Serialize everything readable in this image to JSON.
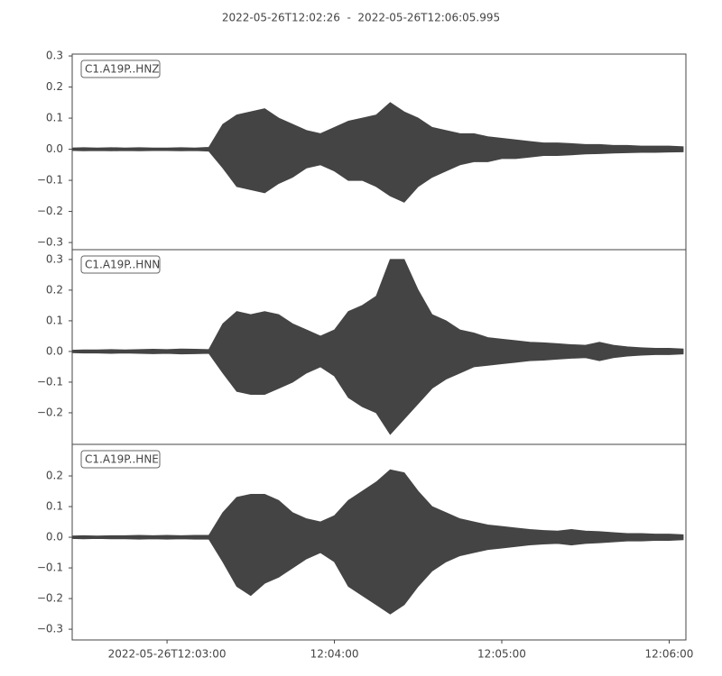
{
  "title": "2022-05-26T12:02:26  -  2022-05-26T12:06:05.995",
  "chart_data": [
    {
      "type": "area",
      "label": "C1.A19P..HNZ",
      "color": "#444444",
      "x": [
        "12:02:26",
        "12:02:30",
        "12:02:35",
        "12:02:40",
        "12:02:45",
        "12:02:50",
        "12:02:55",
        "12:03:00",
        "12:03:05",
        "12:03:10",
        "12:03:15",
        "12:03:20",
        "12:03:25",
        "12:03:30",
        "12:03:35",
        "12:03:40",
        "12:03:45",
        "12:03:50",
        "12:03:55",
        "12:04:00",
        "12:04:05",
        "12:04:10",
        "12:04:15",
        "12:04:20",
        "12:04:25",
        "12:04:30",
        "12:04:35",
        "12:04:40",
        "12:04:45",
        "12:04:50",
        "12:04:55",
        "12:05:00",
        "12:05:05",
        "12:05:10",
        "12:05:15",
        "12:05:20",
        "12:05:25",
        "12:05:30",
        "12:05:35",
        "12:05:40",
        "12:05:45",
        "12:05:50",
        "12:05:55",
        "12:06:00",
        "12:06:05"
      ],
      "high": [
        0.004,
        0.005,
        0.004,
        0.005,
        0.004,
        0.005,
        0.004,
        0.004,
        0.005,
        0.004,
        0.006,
        0.08,
        0.11,
        0.12,
        0.13,
        0.1,
        0.08,
        0.06,
        0.05,
        0.07,
        0.09,
        0.1,
        0.11,
        0.15,
        0.12,
        0.1,
        0.07,
        0.06,
        0.05,
        0.05,
        0.04,
        0.035,
        0.03,
        0.025,
        0.02,
        0.02,
        0.018,
        0.015,
        0.015,
        0.012,
        0.012,
        0.01,
        0.01,
        0.01,
        0.008
      ],
      "low": [
        -0.004,
        -0.005,
        -0.004,
        -0.005,
        -0.004,
        -0.005,
        -0.004,
        -0.004,
        -0.005,
        -0.004,
        -0.006,
        -0.06,
        -0.12,
        -0.13,
        -0.14,
        -0.11,
        -0.09,
        -0.06,
        -0.05,
        -0.07,
        -0.1,
        -0.1,
        -0.12,
        -0.15,
        -0.17,
        -0.12,
        -0.09,
        -0.07,
        -0.05,
        -0.04,
        -0.04,
        -0.03,
        -0.03,
        -0.025,
        -0.02,
        -0.02,
        -0.018,
        -0.015,
        -0.014,
        -0.012,
        -0.011,
        -0.01,
        -0.01,
        -0.009,
        -0.008
      ],
      "xlim": [
        "12:02:26",
        "12:06:05.995"
      ],
      "ylim": [
        -0.323,
        0.306
      ],
      "yticks": [
        {
          "value": -0.3,
          "label": "−0.3"
        },
        {
          "value": -0.2,
          "label": "−0.2"
        },
        {
          "value": -0.1,
          "label": "−0.1"
        },
        {
          "value": 0,
          "label": "0.0"
        },
        0.1,
        0.2,
        0.3
      ]
    },
    {
      "type": "area",
      "label": "C1.A19P..HNN",
      "color": "#444444",
      "x": [
        "12:02:26",
        "12:02:30",
        "12:02:35",
        "12:02:40",
        "12:02:45",
        "12:02:50",
        "12:02:55",
        "12:03:00",
        "12:03:05",
        "12:03:10",
        "12:03:15",
        "12:03:20",
        "12:03:25",
        "12:03:30",
        "12:03:35",
        "12:03:40",
        "12:03:45",
        "12:03:50",
        "12:03:55",
        "12:04:00",
        "12:04:05",
        "12:04:10",
        "12:04:15",
        "12:04:20",
        "12:04:25",
        "12:04:30",
        "12:04:35",
        "12:04:40",
        "12:04:45",
        "12:04:50",
        "12:04:55",
        "12:05:00",
        "12:05:05",
        "12:05:10",
        "12:05:15",
        "12:05:20",
        "12:05:25",
        "12:05:30",
        "12:05:35",
        "12:05:40",
        "12:05:45",
        "12:05:50",
        "12:05:55",
        "12:06:00",
        "12:06:05"
      ],
      "high": [
        0.004,
        0.005,
        0.005,
        0.006,
        0.005,
        0.006,
        0.007,
        0.006,
        0.008,
        0.007,
        0.006,
        0.09,
        0.13,
        0.12,
        0.13,
        0.12,
        0.09,
        0.07,
        0.05,
        0.07,
        0.13,
        0.15,
        0.18,
        0.3,
        0.3,
        0.2,
        0.12,
        0.1,
        0.07,
        0.06,
        0.045,
        0.04,
        0.035,
        0.03,
        0.028,
        0.025,
        0.022,
        0.02,
        0.03,
        0.02,
        0.015,
        0.012,
        0.01,
        0.01,
        0.008
      ],
      "low": [
        -0.004,
        -0.005,
        -0.005,
        -0.006,
        -0.005,
        -0.006,
        -0.007,
        -0.006,
        -0.008,
        -0.007,
        -0.006,
        -0.07,
        -0.13,
        -0.14,
        -0.14,
        -0.12,
        -0.1,
        -0.07,
        -0.05,
        -0.08,
        -0.15,
        -0.18,
        -0.2,
        -0.27,
        -0.22,
        -0.17,
        -0.12,
        -0.09,
        -0.07,
        -0.05,
        -0.045,
        -0.04,
        -0.035,
        -0.03,
        -0.028,
        -0.025,
        -0.022,
        -0.02,
        -0.03,
        -0.02,
        -0.015,
        -0.012,
        -0.01,
        -0.01,
        -0.008
      ],
      "xlim": [
        "12:02:26",
        "12:06:05.995"
      ],
      "ylim": [
        -0.303,
        0.332
      ],
      "yticks": [
        {
          "value": -0.2,
          "label": "−0.2"
        },
        {
          "value": -0.1,
          "label": "−0.1"
        },
        {
          "value": 0,
          "label": "0.0"
        },
        0.1,
        0.2,
        0.3
      ]
    },
    {
      "type": "area",
      "label": "C1.A19P..HNE",
      "color": "#444444",
      "x": [
        "12:02:26",
        "12:02:30",
        "12:02:35",
        "12:02:40",
        "12:02:45",
        "12:02:50",
        "12:02:55",
        "12:03:00",
        "12:03:05",
        "12:03:10",
        "12:03:15",
        "12:03:20",
        "12:03:25",
        "12:03:30",
        "12:03:35",
        "12:03:40",
        "12:03:45",
        "12:03:50",
        "12:03:55",
        "12:04:00",
        "12:04:05",
        "12:04:10",
        "12:04:15",
        "12:04:20",
        "12:04:25",
        "12:04:30",
        "12:04:35",
        "12:04:40",
        "12:04:45",
        "12:04:50",
        "12:04:55",
        "12:05:00",
        "12:05:05",
        "12:05:10",
        "12:05:15",
        "12:05:20",
        "12:05:25",
        "12:05:30",
        "12:05:35",
        "12:05:40",
        "12:05:45",
        "12:05:50",
        "12:05:55",
        "12:06:00",
        "12:06:05"
      ],
      "high": [
        0.004,
        0.005,
        0.004,
        0.005,
        0.005,
        0.006,
        0.005,
        0.006,
        0.005,
        0.006,
        0.006,
        0.08,
        0.13,
        0.14,
        0.14,
        0.12,
        0.08,
        0.06,
        0.05,
        0.07,
        0.12,
        0.15,
        0.18,
        0.22,
        0.21,
        0.15,
        0.1,
        0.08,
        0.06,
        0.05,
        0.04,
        0.035,
        0.03,
        0.025,
        0.022,
        0.02,
        0.025,
        0.02,
        0.018,
        0.015,
        0.012,
        0.012,
        0.01,
        0.01,
        0.008
      ],
      "low": [
        -0.004,
        -0.005,
        -0.004,
        -0.005,
        -0.005,
        -0.006,
        -0.005,
        -0.006,
        -0.005,
        -0.006,
        -0.006,
        -0.08,
        -0.16,
        -0.19,
        -0.15,
        -0.13,
        -0.1,
        -0.07,
        -0.05,
        -0.08,
        -0.16,
        -0.19,
        -0.22,
        -0.25,
        -0.22,
        -0.16,
        -0.11,
        -0.08,
        -0.06,
        -0.05,
        -0.04,
        -0.035,
        -0.03,
        -0.025,
        -0.022,
        -0.02,
        -0.025,
        -0.02,
        -0.018,
        -0.015,
        -0.012,
        -0.012,
        -0.01,
        -0.01,
        -0.008
      ],
      "xlim": [
        "12:02:26",
        "12:06:05.995"
      ],
      "ylim": [
        -0.335,
        0.303
      ],
      "yticks": [
        {
          "value": -0.3,
          "label": "−0.3"
        },
        {
          "value": -0.2,
          "label": "−0.2"
        },
        {
          "value": -0.1,
          "label": "−0.1"
        },
        {
          "value": 0,
          "label": "0.0"
        },
        0.1,
        0.2
      ],
      "xticks": [
        {
          "value": "12:03:00",
          "label": "2022-05-26T12:03:00"
        },
        {
          "value": "12:04:00",
          "label": "12:04:00"
        },
        {
          "value": "12:05:00",
          "label": "12:05:00"
        },
        {
          "value": "12:06:00",
          "label": "12:06:00"
        }
      ]
    }
  ]
}
